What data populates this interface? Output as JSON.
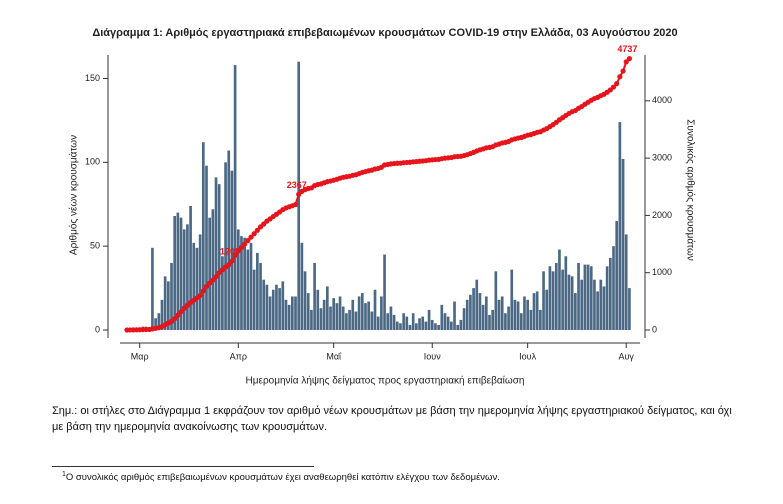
{
  "chart_data": {
    "type": "bar-line",
    "title": "Διάγραμμα 1: Αριθμός εργαστηριακά επιβεβαιωμένων κρουσμάτων COVID-19 στην Ελλάδα, 03 Αυγούστου 2020",
    "xlabel": "Ημερομηνία λήψης δείγματος προς εργαστηριακή επιβεβαίωση",
    "ylabel": "Αριθμός νέων κρουσμάτων",
    "y2label": "Συνολικός αριθμός κρουσμάτων",
    "ylim": [
      0,
      164
    ],
    "yticks": [
      0,
      50,
      100,
      150
    ],
    "y2lim": [
      0,
      4800
    ],
    "y2ticks": [
      0,
      1000,
      2000,
      3000,
      4000
    ],
    "categories": [
      null,
      null,
      null,
      null,
      "Μαρ",
      null,
      null,
      null,
      null,
      null,
      null,
      null,
      null,
      null,
      null,
      null,
      null,
      null,
      null,
      null,
      null,
      null,
      null,
      null,
      null,
      null,
      null,
      null,
      null,
      null,
      null,
      null,
      null,
      null,
      null,
      "Απρ",
      null,
      null,
      null,
      null,
      null,
      null,
      null,
      null,
      null,
      null,
      null,
      null,
      null,
      null,
      null,
      null,
      null,
      null,
      null,
      null,
      null,
      null,
      null,
      null,
      null,
      null,
      null,
      null,
      null,
      "Μαΐ",
      null,
      null,
      null,
      null,
      null,
      null,
      null,
      null,
      null,
      null,
      null,
      null,
      null,
      null,
      null,
      null,
      null,
      null,
      null,
      null,
      null,
      null,
      null,
      null,
      null,
      null,
      null,
      null,
      null,
      null,
      "Ιουν",
      null,
      null,
      null,
      null,
      null,
      null,
      null,
      null,
      null,
      null,
      null,
      null,
      null,
      null,
      null,
      null,
      null,
      null,
      null,
      null,
      null,
      null,
      null,
      null,
      null,
      null,
      null,
      null,
      null,
      "Ιουλ",
      null,
      null,
      null,
      null,
      null,
      null,
      null,
      null,
      null,
      null,
      null,
      null,
      null,
      null,
      null,
      null,
      null,
      null,
      null,
      null,
      null,
      null,
      null,
      null,
      null,
      null,
      null,
      null,
      null,
      null,
      "Αυγ",
      null
    ],
    "series": [
      {
        "kind": "bar",
        "color": "#4b6985",
        "values": [
          1,
          1,
          0,
          1,
          0,
          2,
          2,
          1,
          49,
          7,
          10,
          18,
          32,
          29,
          40,
          68,
          70,
          67,
          60,
          63,
          74,
          52,
          49,
          57,
          112,
          98,
          67,
          72,
          91,
          87,
          44,
          100,
          107,
          95,
          158,
          60,
          56,
          55,
          48,
          52,
          36,
          46,
          40,
          30,
          27,
          20,
          24,
          27,
          25,
          29,
          18,
          15,
          20,
          20,
          160,
          52,
          35,
          22,
          12,
          40,
          24,
          13,
          18,
          26,
          14,
          19,
          16,
          20,
          14,
          10,
          12,
          18,
          11,
          20,
          22,
          16,
          17,
          11,
          24,
          8,
          20,
          45,
          10,
          14,
          9,
          5,
          4,
          10,
          8,
          3,
          10,
          4,
          7,
          8,
          5,
          12,
          6,
          4,
          3,
          15,
          10,
          8,
          5,
          17,
          3,
          6,
          13,
          18,
          21,
          25,
          30,
          22,
          15,
          20,
          9,
          12,
          35,
          18,
          20,
          10,
          14,
          36,
          18,
          17,
          10,
          20,
          18,
          12,
          22,
          23,
          12,
          35,
          24,
          38,
          35,
          40,
          48,
          36,
          44,
          33,
          32,
          22,
          40,
          30,
          39,
          39,
          38,
          30,
          23,
          30,
          26,
          38,
          43,
          50,
          65,
          124,
          102,
          57,
          25
        ]
      },
      {
        "kind": "line",
        "axis": "y2",
        "color": "#e8141b",
        "values": [
          0,
          1,
          2,
          3,
          5,
          7,
          9,
          10,
          20,
          30,
          40,
          60,
          90,
          120,
          150,
          200,
          260,
          320,
          380,
          430,
          480,
          520,
          560,
          600,
          680,
          760,
          820,
          870,
          930,
          1000,
          1050,
          1100,
          1140,
          1203,
          1300,
          1380,
          1440,
          1500,
          1560,
          1620,
          1680,
          1740,
          1800,
          1850,
          1900,
          1940,
          1980,
          2020,
          2060,
          2100,
          2130,
          2150,
          2170,
          2190,
          2367,
          2420,
          2450,
          2470,
          2480,
          2520,
          2540,
          2550,
          2570,
          2590,
          2600,
          2615,
          2630,
          2650,
          2665,
          2675,
          2685,
          2700,
          2710,
          2730,
          2750,
          2765,
          2780,
          2790,
          2810,
          2820,
          2840,
          2880,
          2890,
          2900,
          2905,
          2910,
          2912,
          2920,
          2925,
          2928,
          2935,
          2940,
          2945,
          2950,
          2955,
          2965,
          2970,
          2975,
          2978,
          2990,
          3000,
          3005,
          3010,
          3025,
          3028,
          3032,
          3045,
          3060,
          3080,
          3100,
          3125,
          3145,
          3160,
          3180,
          3188,
          3200,
          3230,
          3245,
          3265,
          3275,
          3290,
          3320,
          3335,
          3350,
          3360,
          3380,
          3400,
          3410,
          3430,
          3450,
          3460,
          3490,
          3515,
          3550,
          3585,
          3625,
          3670,
          3705,
          3745,
          3780,
          3810,
          3830,
          3870,
          3900,
          3940,
          3975,
          4010,
          4040,
          4060,
          4090,
          4115,
          4150,
          4190,
          4240,
          4300,
          4420,
          4520,
          4680,
          4737
        ],
        "value_labels": [
          null,
          null,
          null,
          null,
          null,
          null,
          null,
          null,
          null,
          null,
          null,
          null,
          null,
          null,
          null,
          null,
          null,
          null,
          null,
          null,
          null,
          null,
          null,
          null,
          null,
          null,
          null,
          null,
          null,
          null,
          null,
          null,
          null,
          "1203",
          null,
          null,
          null,
          null,
          null,
          null,
          null,
          null,
          null,
          null,
          null,
          null,
          null,
          null,
          null,
          null,
          null,
          null,
          null,
          null,
          "2367",
          null,
          null,
          null,
          null,
          null,
          null,
          null,
          null,
          null,
          null,
          null,
          null,
          null,
          null,
          null,
          null,
          null,
          null,
          null,
          null,
          null,
          null,
          null,
          null,
          null,
          null,
          null,
          null,
          null,
          null,
          null,
          null,
          null,
          null,
          null,
          null,
          null,
          null,
          null,
          null,
          null,
          null,
          null,
          null,
          null,
          null,
          null,
          null,
          null,
          null,
          null,
          null,
          null,
          null,
          null,
          null,
          null,
          null,
          null,
          null,
          null,
          null,
          null,
          null,
          null,
          null,
          null,
          null,
          null,
          null,
          null,
          null,
          null,
          null,
          null,
          null,
          null,
          null,
          null,
          null,
          null,
          null,
          null,
          null,
          null,
          null,
          null,
          null,
          null,
          null,
          null,
          null,
          null,
          null,
          null,
          null,
          null,
          null,
          null,
          null,
          null,
          null,
          null,
          "4737"
        ]
      }
    ]
  },
  "note": "Σημ.: οι στήλες στο Διάγραμμα 1 εκφράζουν τον αριθμό νέων κρουσμάτων με βάση την ημερομηνία λήψης εργαστηριακού δείγματος, και όχι με βάση την ημερομηνία ανακοίνωσης των κρουσμάτων.",
  "footnote": {
    "mark": "1",
    "text": "Ο συνολικός αριθμός επιβεβαιωμένων κρουσμάτων έχει αναθεωρηθεί κατόπιν ελέγχου των δεδομένων."
  }
}
